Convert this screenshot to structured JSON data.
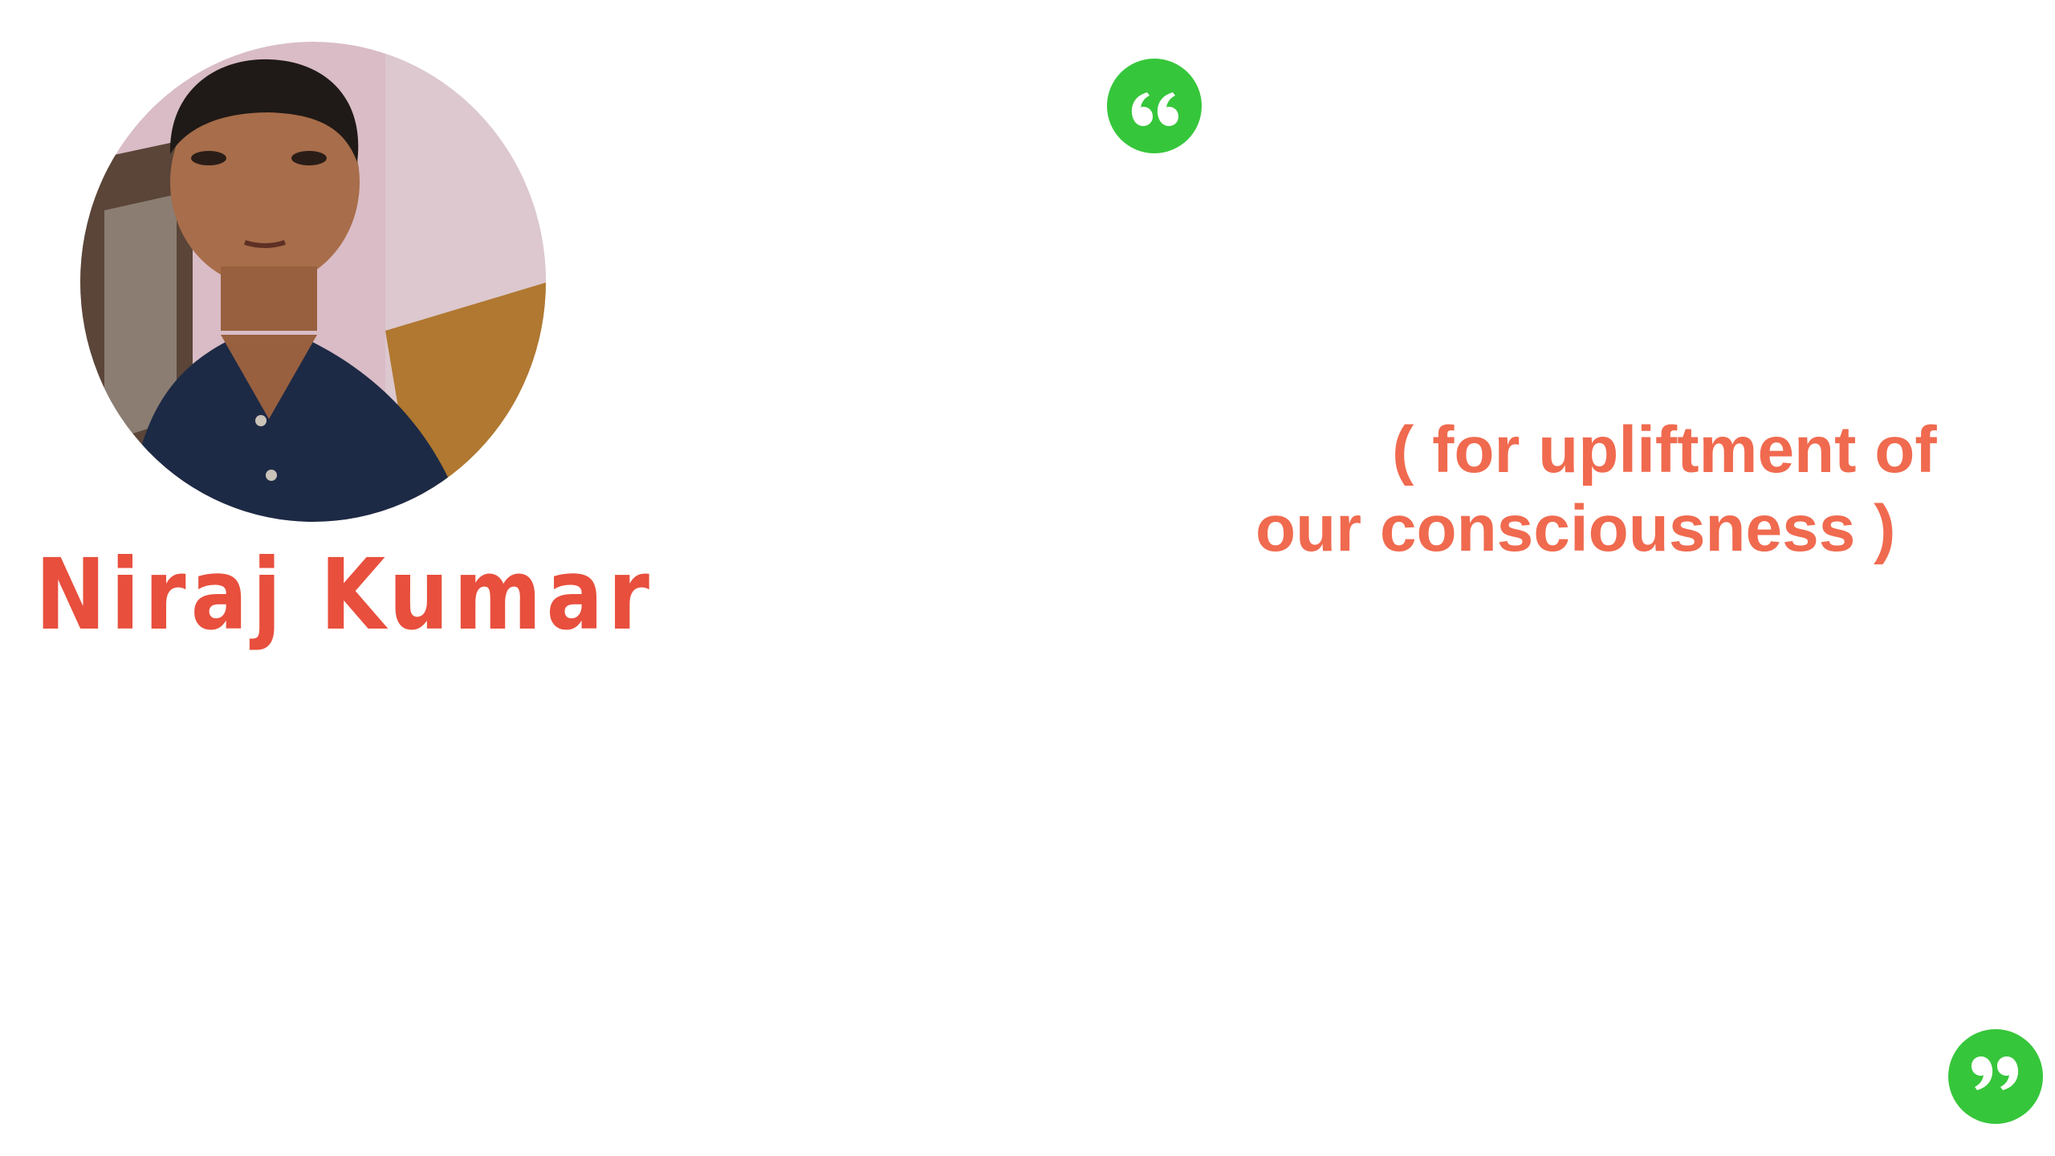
{
  "profile": {
    "name": "Niraj Kumar"
  },
  "quote": {
    "lines": [
      "( for upliftment of",
      "our consciousness )"
    ]
  },
  "icons": {
    "open": "open-quote-icon",
    "close": "close-quote-icon"
  },
  "colors": {
    "name": "#e84f3d",
    "quote_text": "#f06a4f",
    "quote_icon": "#36c63b",
    "background": "#ffffff"
  }
}
